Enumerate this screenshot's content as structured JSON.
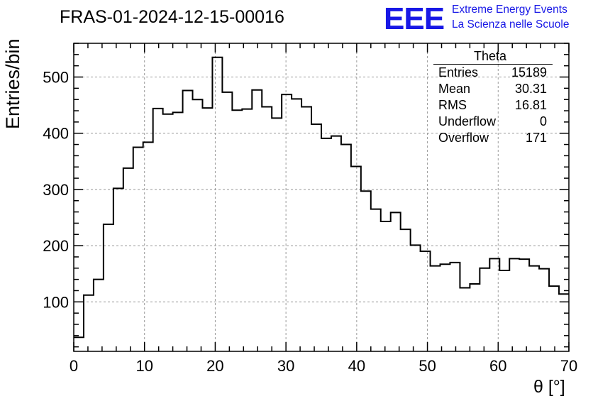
{
  "header": {
    "title": "FRAS-01-2024-12-15-00016",
    "logo_mark": "EEE",
    "logo_line1": "Extreme Energy Events",
    "logo_line2": "La Scienza nelle Scuole"
  },
  "stats_box": {
    "name": "Theta",
    "rows": [
      {
        "label": "Entries",
        "value": "15189"
      },
      {
        "label": "Mean",
        "value": "30.31"
      },
      {
        "label": "RMS",
        "value": "16.81"
      },
      {
        "label": "Underflow",
        "value": "0"
      },
      {
        "label": "Overflow",
        "value": "171"
      }
    ]
  },
  "chart_data": {
    "type": "bar",
    "style": "step-histogram",
    "xlabel": "θ [°]",
    "ylabel": "Entries/bin",
    "xlim": [
      0,
      70
    ],
    "ylim": [
      12,
      560
    ],
    "xticks": [
      0,
      10,
      20,
      30,
      40,
      50,
      60,
      70
    ],
    "yticks": [
      100,
      200,
      300,
      400,
      500
    ],
    "grid": true,
    "bin_edges_start": 0,
    "bin_width": 1.4,
    "values": [
      37,
      112,
      140,
      238,
      302,
      338,
      375,
      384,
      444,
      434,
      437,
      476,
      460,
      445,
      535,
      473,
      441,
      443,
      477,
      447,
      427,
      469,
      461,
      447,
      416,
      391,
      395,
      380,
      341,
      297,
      265,
      243,
      259,
      229,
      201,
      190,
      164,
      167,
      170,
      125,
      132,
      160,
      177,
      156,
      177,
      176,
      164,
      159,
      128,
      114
    ]
  }
}
